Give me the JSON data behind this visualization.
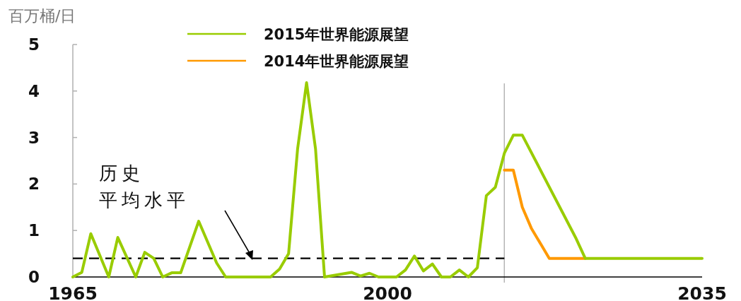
{
  "chart_data": {
    "type": "line",
    "ylabel": "百万桶/日",
    "annotations": [
      "历史",
      "平均水平"
    ],
    "xlim": [
      1965,
      2035
    ],
    "xticks": [
      1965,
      2000,
      2035
    ],
    "ylim": [
      0,
      5
    ],
    "yticks": [
      0,
      1,
      2,
      3,
      4,
      5
    ],
    "legend": "top",
    "ref_lines": [
      {
        "axis": "x",
        "value": 2013,
        "color": "#b4b4b4"
      }
    ],
    "series": [
      {
        "type": "line",
        "color": "#000000",
        "line_style": "dashed",
        "x": [
          1965,
          2013
        ],
        "values": [
          0.4,
          0.4
        ]
      },
      {
        "name": "2014年世界能源展望",
        "color": "#ff9900",
        "x": [
          2013,
          2014,
          2015,
          2016,
          2018,
          2022
        ],
        "values": [
          2.3,
          2.3,
          1.5,
          1.05,
          0.4,
          0.4
        ]
      },
      {
        "name": "2015年世界能源展望",
        "color": "#99cc00",
        "x": [
          1965,
          1966,
          1967,
          1969,
          1970,
          1972,
          1973,
          1974,
          1975,
          1976,
          1977,
          1979,
          1981,
          1982,
          1987,
          1988,
          1989,
          1990,
          1991,
          1992,
          1993,
          1996,
          1997,
          1998,
          1999,
          2001,
          2002,
          2003,
          2004,
          2005,
          2006,
          2007,
          2008,
          2009,
          2010,
          2011,
          2012,
          2013,
          2014,
          2015,
          2021,
          2022,
          2035
        ],
        "values": [
          0,
          0.1,
          0.93,
          0,
          0.85,
          0,
          0.53,
          0.4,
          0,
          0.09,
          0.09,
          1.2,
          0.3,
          0,
          0,
          0.17,
          0.5,
          2.75,
          4.18,
          2.75,
          0,
          0.1,
          0.02,
          0.08,
          0,
          0,
          0.15,
          0.45,
          0.13,
          0.28,
          0,
          0,
          0.15,
          0,
          0.2,
          1.75,
          1.93,
          2.66,
          3.05,
          3.05,
          0.82,
          0.4,
          0.4
        ]
      }
    ]
  }
}
